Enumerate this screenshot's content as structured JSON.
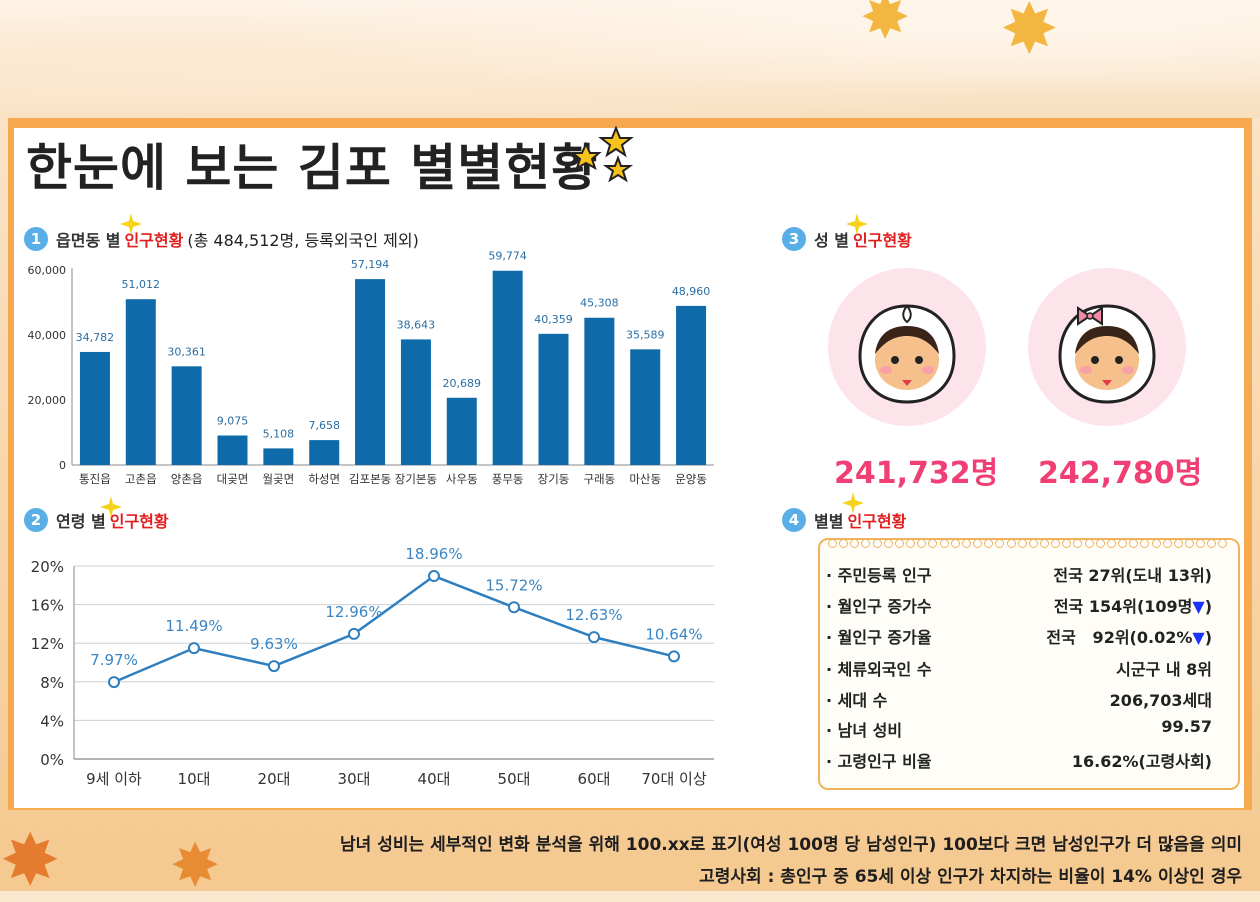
{
  "title": "한눈에 보는 김포 별별현황",
  "section1": {
    "num": "1",
    "head": "읍면동 별",
    "highlight": "인구현황",
    "extra": "(총 484,512명, 등록외국인 제외)"
  },
  "section2": {
    "num": "2",
    "head": "연령 별",
    "highlight": "인구현황"
  },
  "section3": {
    "num": "3",
    "head": "성 별",
    "highlight": "인구현황"
  },
  "section4": {
    "num": "4",
    "head": "별별",
    "highlight": "인구현황"
  },
  "colors": {
    "bar": "#0e6aa8",
    "line": "#2f7fbf",
    "accent_red": "#e21f1f",
    "pink": "#ef3f74",
    "badge": "#5aaee8"
  },
  "chart_data": [
    {
      "type": "bar",
      "categories": [
        "통진읍",
        "고촌읍",
        "양촌읍",
        "대곶면",
        "월곶면",
        "하성면",
        "김포본동",
        "장기본동",
        "사우동",
        "풍무동",
        "장기동",
        "구래동",
        "마산동",
        "운양동"
      ],
      "values": [
        34782,
        51012,
        30361,
        9075,
        5108,
        7658,
        57194,
        38643,
        20689,
        59774,
        40359,
        45308,
        35589,
        48960
      ],
      "value_labels": [
        "34,782",
        "51,012",
        "30,361",
        "9,075",
        "5,108",
        "7,658",
        "57,194",
        "38,643",
        "20,689",
        "59,774",
        "40,359",
        "45,308",
        "35,589",
        "48,960"
      ],
      "yticks": [
        "0",
        "20,000",
        "40,000",
        "60,000"
      ],
      "ylim": [
        0,
        60000
      ]
    },
    {
      "type": "line",
      "categories": [
        "9세 이하",
        "10대",
        "20대",
        "30대",
        "40대",
        "50대",
        "60대",
        "70대 이상"
      ],
      "values": [
        7.97,
        11.49,
        9.63,
        12.96,
        18.96,
        15.72,
        12.63,
        10.64
      ],
      "value_labels": [
        "7.97%",
        "11.49%",
        "9.63%",
        "12.96%",
        "18.96%",
        "15.72%",
        "12.63%",
        "10.64%"
      ],
      "yticks": [
        "0%",
        "4%",
        "8%",
        "12%",
        "16%",
        "20%"
      ],
      "ylim": [
        0,
        20
      ],
      "grid": true
    }
  ],
  "gender": {
    "male_count": "241,732명",
    "female_count": "242,780명"
  },
  "stats": [
    {
      "label": "· 주민등록 인구",
      "value": "전국 27위(도내 13위)",
      "arrow": ""
    },
    {
      "label": "· 월인구 증가수",
      "value": "전국 154위(109명",
      "arrow": "▼",
      "tail": ")"
    },
    {
      "label": "· 월인구 증가율",
      "value": "전국   92위(0.02%",
      "arrow": "▼",
      "tail": ")"
    },
    {
      "label": "· 체류외국인 수",
      "value": "시군구 내 8위",
      "arrow": ""
    },
    {
      "label": "· 세대 수",
      "value": "206,703세대",
      "arrow": ""
    },
    {
      "label": "· 남녀 성비",
      "value": "99.57",
      "arrow": ""
    },
    {
      "label": "· 고령인구 비율",
      "value": "16.62%(고령사회)",
      "arrow": ""
    }
  ],
  "footnotes": [
    "남녀 성비는 세부적인 변화 분석을 위해 100.xx로 표기(여성 100명 당 남성인구) 100보다 크면 남성인구가 더 많음을 의미",
    "고령사회 : 총인구 중 65세 이상 인구가 차지하는 비율이 14% 이상인 경우"
  ]
}
